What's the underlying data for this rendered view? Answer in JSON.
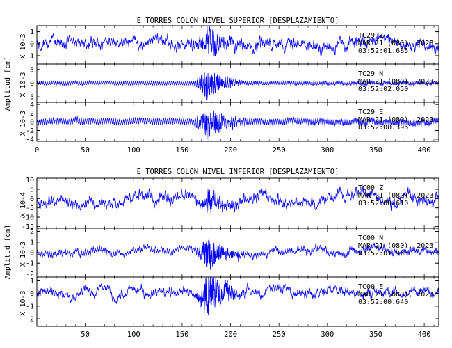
{
  "chart_data": [
    {
      "type": "line",
      "title": "E TORRES COLON NIVEL SUPERIOR [DESPLAZAMIENTO]",
      "ylabel": "Amplitud [cm]",
      "xlim": [
        0,
        415
      ],
      "xticks": [
        0,
        50,
        100,
        150,
        200,
        250,
        300,
        350,
        400
      ],
      "series_color": "#0000ff",
      "traces": [
        {
          "scale": "X 10-3",
          "ylim": [
            -1.7,
            1.5
          ],
          "yticks": [
            -1,
            0,
            1
          ],
          "station": "TC29",
          "component": "Z",
          "date": "MAR 21 (080), 2023",
          "time": "03:52:01.685",
          "base_amp": 0.55,
          "burst_amp": 1.0,
          "drift": 0.25,
          "hf_ratio": 0.35,
          "seed": 11
        },
        {
          "scale": "X 10-3",
          "ylim": [
            -7,
            7
          ],
          "yticks": [
            -5,
            0,
            5
          ],
          "station": "TC29",
          "component": "N",
          "date": "MAR 21 (080), 2023",
          "time": "03:52:02.050",
          "base_amp": 0.8,
          "burst_amp": 5.5,
          "drift": 0.1,
          "hf_ratio": 0.85,
          "seed": 23
        },
        {
          "scale": "X 10-3",
          "ylim": [
            -4.5,
            4.5
          ],
          "yticks": [
            -4,
            -2,
            0,
            2,
            4
          ],
          "station": "TC29",
          "component": "E",
          "date": "MAR 21 (080), 2023",
          "time": "03:52:00.396",
          "base_amp": 0.9,
          "burst_amp": 3.6,
          "drift": 0.2,
          "hf_ratio": 0.85,
          "seed": 37
        }
      ]
    },
    {
      "type": "line",
      "title": "E TORRES COLON NIVEL INFERIOR [DESPLAZAMIENTO]",
      "ylabel": "Amplitud [cm]",
      "xlim": [
        0,
        415
      ],
      "xticks": [
        50,
        100,
        150,
        200,
        250,
        300,
        350,
        400
      ],
      "series_color": "#0000ff",
      "traces": [
        {
          "scale": "X 10-4",
          "ylim": [
            -16,
            11
          ],
          "yticks": [
            -15,
            -10,
            -5,
            0,
            5,
            10
          ],
          "station": "TC00",
          "component": "Z",
          "date": "MAR 21 (080), 2023",
          "time": "03:52:00.610",
          "base_amp": 3.5,
          "burst_amp": 5.0,
          "drift": 2.5,
          "hf_ratio": 0.4,
          "seed": 53
        },
        {
          "scale": "X 10-3",
          "ylim": [
            -2.3,
            2.3
          ],
          "yticks": [
            -2,
            -1,
            0,
            1,
            2
          ],
          "station": "TC00",
          "component": "N",
          "date": "MAR 21 (080), 2023",
          "time": "03:52:01.955",
          "base_amp": 0.4,
          "burst_amp": 1.5,
          "drift": 0.3,
          "hf_ratio": 0.5,
          "seed": 71
        },
        {
          "scale": "X 10-3",
          "ylim": [
            -2.6,
            1.3
          ],
          "yticks": [
            -2,
            -1,
            0,
            1
          ],
          "station": "TC00",
          "component": "E",
          "date": "MAR 21 (080), 2023",
          "time": "03:52:00.640",
          "base_amp": 0.4,
          "burst_amp": 1.6,
          "drift": 0.35,
          "hf_ratio": 0.35,
          "seed": 89
        }
      ]
    }
  ]
}
